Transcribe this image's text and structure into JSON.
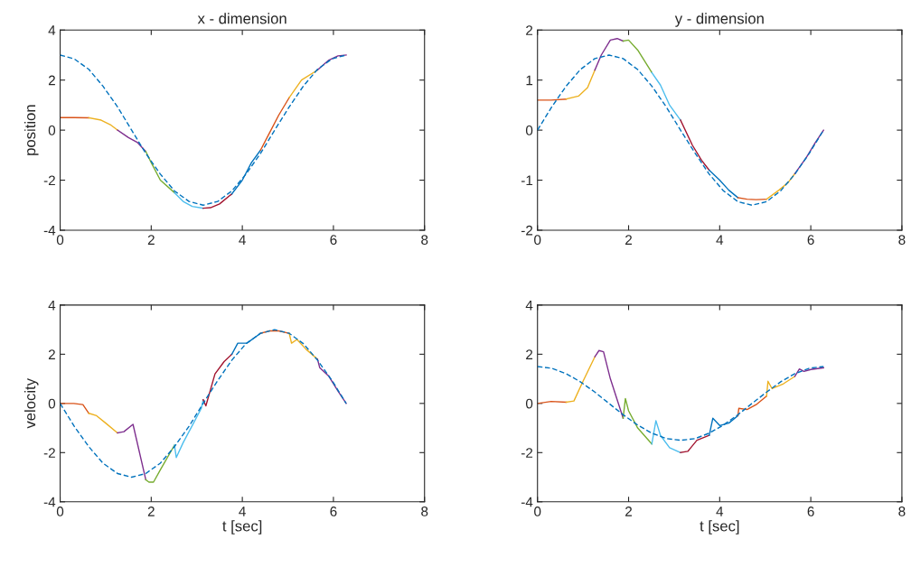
{
  "chart_data": [
    {
      "type": "line",
      "title": "x - dimension",
      "ylabel": "position",
      "xlim": [
        0,
        8
      ],
      "xticks": [
        0,
        2,
        4,
        6,
        8
      ],
      "ylim": [
        -4,
        4
      ],
      "yticks": [
        -4,
        -2,
        0,
        2,
        4
      ],
      "series": [
        {
          "color": "#0072bd",
          "line_style": "dashed",
          "x": [
            0,
            0.31,
            0.63,
            0.94,
            1.26,
            1.57,
            1.88,
            2.2,
            2.51,
            2.83,
            3.14,
            3.46,
            3.77,
            4.08,
            4.4,
            4.71,
            5.03,
            5.34,
            5.65,
            5.97,
            6.28
          ],
          "values": [
            3,
            2.85,
            2.43,
            1.76,
            0.93,
            0,
            -0.93,
            -1.76,
            -2.43,
            -2.85,
            -3,
            -2.85,
            -2.43,
            -1.76,
            -0.93,
            0,
            0.93,
            1.76,
            2.43,
            2.85,
            3
          ]
        },
        {
          "color": "#d95319",
          "x": [
            0,
            0.3,
            0.63
          ],
          "values": [
            0.5,
            0.5,
            0.49
          ]
        },
        {
          "color": "#edb120",
          "x": [
            0.63,
            0.9,
            1.1,
            1.26
          ],
          "values": [
            0.49,
            0.4,
            0.22,
            0.0
          ]
        },
        {
          "color": "#7e2f8e",
          "x": [
            1.26,
            1.5,
            1.7,
            1.88
          ],
          "values": [
            0.0,
            -0.3,
            -0.5,
            -0.85
          ]
        },
        {
          "color": "#77ac30",
          "x": [
            1.88,
            2.0,
            2.2,
            2.51
          ],
          "values": [
            -0.85,
            -1.3,
            -2.0,
            -2.5
          ]
        },
        {
          "color": "#4dbeee",
          "x": [
            2.51,
            2.7,
            2.9,
            3.14
          ],
          "values": [
            -2.5,
            -2.85,
            -3.05,
            -3.12
          ]
        },
        {
          "color": "#a2142f",
          "x": [
            3.14,
            3.3,
            3.5,
            3.77
          ],
          "values": [
            -3.12,
            -3.1,
            -2.95,
            -2.55
          ]
        },
        {
          "color": "#0072bd",
          "x": [
            3.77,
            4.0,
            4.2,
            4.4
          ],
          "values": [
            -2.55,
            -2.0,
            -1.3,
            -0.8
          ]
        },
        {
          "color": "#d95319",
          "x": [
            4.4,
            4.6,
            4.8,
            5.03
          ],
          "values": [
            -0.8,
            -0.1,
            0.6,
            1.3
          ]
        },
        {
          "color": "#edb120",
          "x": [
            5.03,
            5.3,
            5.65
          ],
          "values": [
            1.3,
            2.0,
            2.4
          ]
        },
        {
          "color": "#7e2f8e",
          "x": [
            5.65,
            5.9,
            6.1,
            6.28
          ],
          "values": [
            2.4,
            2.8,
            2.97,
            3.0
          ]
        }
      ]
    },
    {
      "type": "line",
      "title": "y - dimension",
      "xlim": [
        0,
        8
      ],
      "xticks": [
        0,
        2,
        4,
        6,
        8
      ],
      "ylim": [
        -2,
        2
      ],
      "yticks": [
        -2,
        -1,
        0,
        1,
        2
      ],
      "series": [
        {
          "color": "#0072bd",
          "line_style": "dashed",
          "x": [
            0,
            0.31,
            0.63,
            0.94,
            1.26,
            1.57,
            1.88,
            2.2,
            2.51,
            2.83,
            3.14,
            3.46,
            3.77,
            4.08,
            4.4,
            4.71,
            5.03,
            5.34,
            5.65,
            5.97,
            6.28
          ],
          "values": [
            0,
            0.46,
            0.88,
            1.21,
            1.43,
            1.5,
            1.43,
            1.21,
            0.88,
            0.46,
            0,
            -0.46,
            -0.88,
            -1.21,
            -1.43,
            -1.5,
            -1.43,
            -1.21,
            -0.88,
            -0.46,
            0
          ]
        },
        {
          "color": "#d95319",
          "x": [
            0,
            0.3,
            0.63
          ],
          "values": [
            0.6,
            0.6,
            0.62
          ]
        },
        {
          "color": "#edb120",
          "x": [
            0.63,
            0.9,
            1.1,
            1.26
          ],
          "values": [
            0.62,
            0.68,
            0.85,
            1.2
          ]
        },
        {
          "color": "#7e2f8e",
          "x": [
            1.26,
            1.4,
            1.6,
            1.75,
            1.88
          ],
          "values": [
            1.2,
            1.5,
            1.8,
            1.83,
            1.78
          ]
        },
        {
          "color": "#77ac30",
          "x": [
            1.88,
            2.0,
            2.2,
            2.51
          ],
          "values": [
            1.78,
            1.8,
            1.6,
            1.15
          ]
        },
        {
          "color": "#4dbeee",
          "x": [
            2.51,
            2.7,
            2.9,
            3.14
          ],
          "values": [
            1.15,
            0.9,
            0.5,
            0.2
          ]
        },
        {
          "color": "#a2142f",
          "x": [
            3.14,
            3.4,
            3.6,
            3.77
          ],
          "values": [
            0.2,
            -0.3,
            -0.6,
            -0.8
          ]
        },
        {
          "color": "#0072bd",
          "x": [
            3.77,
            4.0,
            4.2,
            4.4
          ],
          "values": [
            -0.8,
            -1.0,
            -1.2,
            -1.35
          ]
        },
        {
          "color": "#d95319",
          "x": [
            4.4,
            4.6,
            4.8,
            5.03
          ],
          "values": [
            -1.35,
            -1.38,
            -1.39,
            -1.38
          ]
        },
        {
          "color": "#edb120",
          "x": [
            5.03,
            5.3,
            5.5,
            5.65
          ],
          "values": [
            -1.38,
            -1.2,
            -1.05,
            -0.87
          ]
        },
        {
          "color": "#7e2f8e",
          "x": [
            5.65,
            5.9,
            6.1,
            6.28
          ],
          "values": [
            -0.87,
            -0.55,
            -0.25,
            0.0
          ]
        }
      ]
    },
    {
      "type": "line",
      "ylabel": "velocity",
      "xlabel": "t [sec]",
      "xlim": [
        0,
        8
      ],
      "xticks": [
        0,
        2,
        4,
        6,
        8
      ],
      "ylim": [
        -4,
        4
      ],
      "yticks": [
        -4,
        -2,
        0,
        2,
        4
      ],
      "series": [
        {
          "color": "#0072bd",
          "line_style": "dashed",
          "x": [
            0,
            0.31,
            0.63,
            0.94,
            1.26,
            1.57,
            1.88,
            2.2,
            2.51,
            2.83,
            3.14,
            3.46,
            3.77,
            4.08,
            4.4,
            4.71,
            5.03,
            5.34,
            5.65,
            5.97,
            6.28
          ],
          "values": [
            0,
            -0.93,
            -1.76,
            -2.43,
            -2.85,
            -3,
            -2.85,
            -2.43,
            -1.76,
            -0.93,
            0,
            0.93,
            1.76,
            2.43,
            2.85,
            3,
            2.85,
            2.43,
            1.76,
            0.93,
            0
          ]
        },
        {
          "color": "#d95319",
          "x": [
            0,
            0.3,
            0.5,
            0.63
          ],
          "values": [
            0,
            0,
            -0.05,
            -0.4
          ]
        },
        {
          "color": "#edb120",
          "x": [
            0.63,
            0.8,
            1.0,
            1.26
          ],
          "values": [
            -0.4,
            -0.5,
            -0.8,
            -1.2
          ]
        },
        {
          "color": "#7e2f8e",
          "x": [
            1.26,
            1.4,
            1.6,
            1.88
          ],
          "values": [
            -1.2,
            -1.15,
            -0.85,
            -3.1
          ]
        },
        {
          "color": "#77ac30",
          "x": [
            1.88,
            1.95,
            2.05,
            2.2,
            2.51
          ],
          "values": [
            -3.1,
            -3.2,
            -3.2,
            -2.7,
            -1.7
          ]
        },
        {
          "color": "#4dbeee",
          "x": [
            2.51,
            2.55,
            2.7,
            2.9,
            3.1,
            3.14
          ],
          "values": [
            -1.7,
            -2.2,
            -1.6,
            -0.9,
            -0.2,
            0.15
          ]
        },
        {
          "color": "#a2142f",
          "x": [
            3.14,
            3.2,
            3.4,
            3.6,
            3.77
          ],
          "values": [
            0.15,
            -0.1,
            1.2,
            1.7,
            2.0
          ]
        },
        {
          "color": "#0072bd",
          "x": [
            3.77,
            3.9,
            4.1,
            4.4
          ],
          "values": [
            2.0,
            2.45,
            2.45,
            2.85
          ]
        },
        {
          "color": "#d95319",
          "x": [
            4.4,
            4.6,
            4.8,
            5.03
          ],
          "values": [
            2.85,
            2.95,
            2.95,
            2.85
          ]
        },
        {
          "color": "#edb120",
          "x": [
            5.03,
            5.08,
            5.2,
            5.4,
            5.65
          ],
          "values": [
            2.85,
            2.45,
            2.6,
            2.2,
            1.8
          ]
        },
        {
          "color": "#7e2f8e",
          "x": [
            5.65,
            5.7,
            5.9,
            6.1,
            6.28
          ],
          "values": [
            1.8,
            1.45,
            1.1,
            0.5,
            0.0
          ]
        }
      ]
    },
    {
      "type": "line",
      "xlabel": "t [sec]",
      "xlim": [
        0,
        8
      ],
      "xticks": [
        0,
        2,
        4,
        6,
        8
      ],
      "ylim": [
        -4,
        4
      ],
      "yticks": [
        -4,
        -2,
        0,
        2,
        4
      ],
      "series": [
        {
          "color": "#0072bd",
          "line_style": "dashed",
          "x": [
            0,
            0.31,
            0.63,
            0.94,
            1.26,
            1.57,
            1.88,
            2.2,
            2.51,
            2.83,
            3.14,
            3.46,
            3.77,
            4.08,
            4.4,
            4.71,
            5.03,
            5.34,
            5.65,
            5.97,
            6.28
          ],
          "values": [
            1.5,
            1.43,
            1.21,
            0.88,
            0.46,
            0,
            -0.46,
            -0.88,
            -1.21,
            -1.43,
            -1.5,
            -1.43,
            -1.21,
            -0.88,
            -0.46,
            0,
            0.46,
            0.88,
            1.21,
            1.43,
            1.5
          ]
        },
        {
          "color": "#d95319",
          "x": [
            0,
            0.3,
            0.63
          ],
          "values": [
            0,
            0.08,
            0.05
          ]
        },
        {
          "color": "#edb120",
          "x": [
            0.63,
            0.8,
            1.0,
            1.26
          ],
          "values": [
            0.05,
            0.1,
            0.9,
            1.9
          ]
        },
        {
          "color": "#7e2f8e",
          "x": [
            1.26,
            1.35,
            1.45,
            1.6,
            1.88
          ],
          "values": [
            1.9,
            2.15,
            2.1,
            1.0,
            -0.6
          ]
        },
        {
          "color": "#77ac30",
          "x": [
            1.88,
            1.93,
            2.0,
            2.2,
            2.51
          ],
          "values": [
            -0.6,
            0.2,
            -0.3,
            -1.0,
            -1.65
          ]
        },
        {
          "color": "#4dbeee",
          "x": [
            2.51,
            2.6,
            2.7,
            2.9,
            3.14
          ],
          "values": [
            -1.65,
            -0.7,
            -1.3,
            -1.8,
            -2.0
          ]
        },
        {
          "color": "#a2142f",
          "x": [
            3.14,
            3.3,
            3.5,
            3.77
          ],
          "values": [
            -2.0,
            -1.95,
            -1.5,
            -1.3
          ]
        },
        {
          "color": "#0072bd",
          "x": [
            3.77,
            3.85,
            4.0,
            4.2,
            4.4
          ],
          "values": [
            -1.3,
            -0.6,
            -0.9,
            -0.8,
            -0.5
          ]
        },
        {
          "color": "#d95319",
          "x": [
            4.4,
            4.42,
            4.6,
            4.8,
            5.03
          ],
          "values": [
            -0.5,
            -0.2,
            -0.25,
            -0.05,
            0.3
          ]
        },
        {
          "color": "#edb120",
          "x": [
            5.03,
            5.06,
            5.15,
            5.4,
            5.65
          ],
          "values": [
            0.3,
            0.9,
            0.6,
            0.8,
            1.1
          ]
        },
        {
          "color": "#7e2f8e",
          "x": [
            5.65,
            5.75,
            5.85,
            6.0,
            6.28
          ],
          "values": [
            1.1,
            1.4,
            1.3,
            1.38,
            1.45
          ]
        }
      ]
    }
  ]
}
